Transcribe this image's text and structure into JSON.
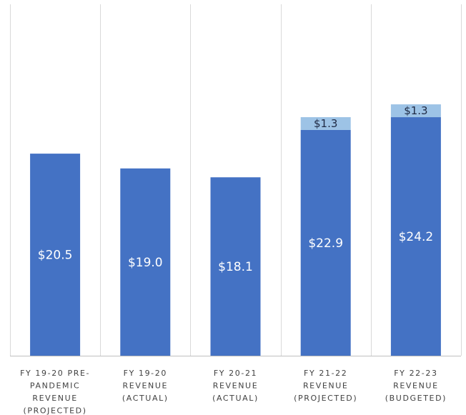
{
  "chart_data": {
    "type": "bar",
    "stacked": true,
    "grid": "vertical category separators",
    "legend": "none",
    "categories": [
      [
        "FY 19-20 PRE-",
        "PANDEMIC",
        "REVENUE",
        "(PROJECTED)"
      ],
      [
        "FY 19-20",
        "REVENUE",
        "(ACTUAL)"
      ],
      [
        "FY 20-21",
        "REVENUE",
        "(ACTUAL)"
      ],
      [
        "FY 21-22",
        "REVENUE",
        "(PROJECTED)"
      ],
      [
        "FY 22-23",
        "REVENUE",
        "(BUDGETED)"
      ]
    ],
    "series": [
      {
        "color": "#4472c4",
        "values": [
          20.5,
          19.0,
          18.1,
          22.9,
          24.2
        ],
        "labels": [
          "$20.5",
          "$19.0",
          "$18.1",
          "$22.9",
          "$24.2"
        ]
      },
      {
        "color": "#9dc3e6",
        "values": [
          0,
          0,
          0,
          1.3,
          1.3
        ],
        "labels": [
          "",
          "",
          "",
          "$1.3",
          "$1.3"
        ]
      }
    ],
    "ylim": [
      0,
      27.5
    ],
    "title": "",
    "xlabel": "",
    "ylabel": ""
  }
}
